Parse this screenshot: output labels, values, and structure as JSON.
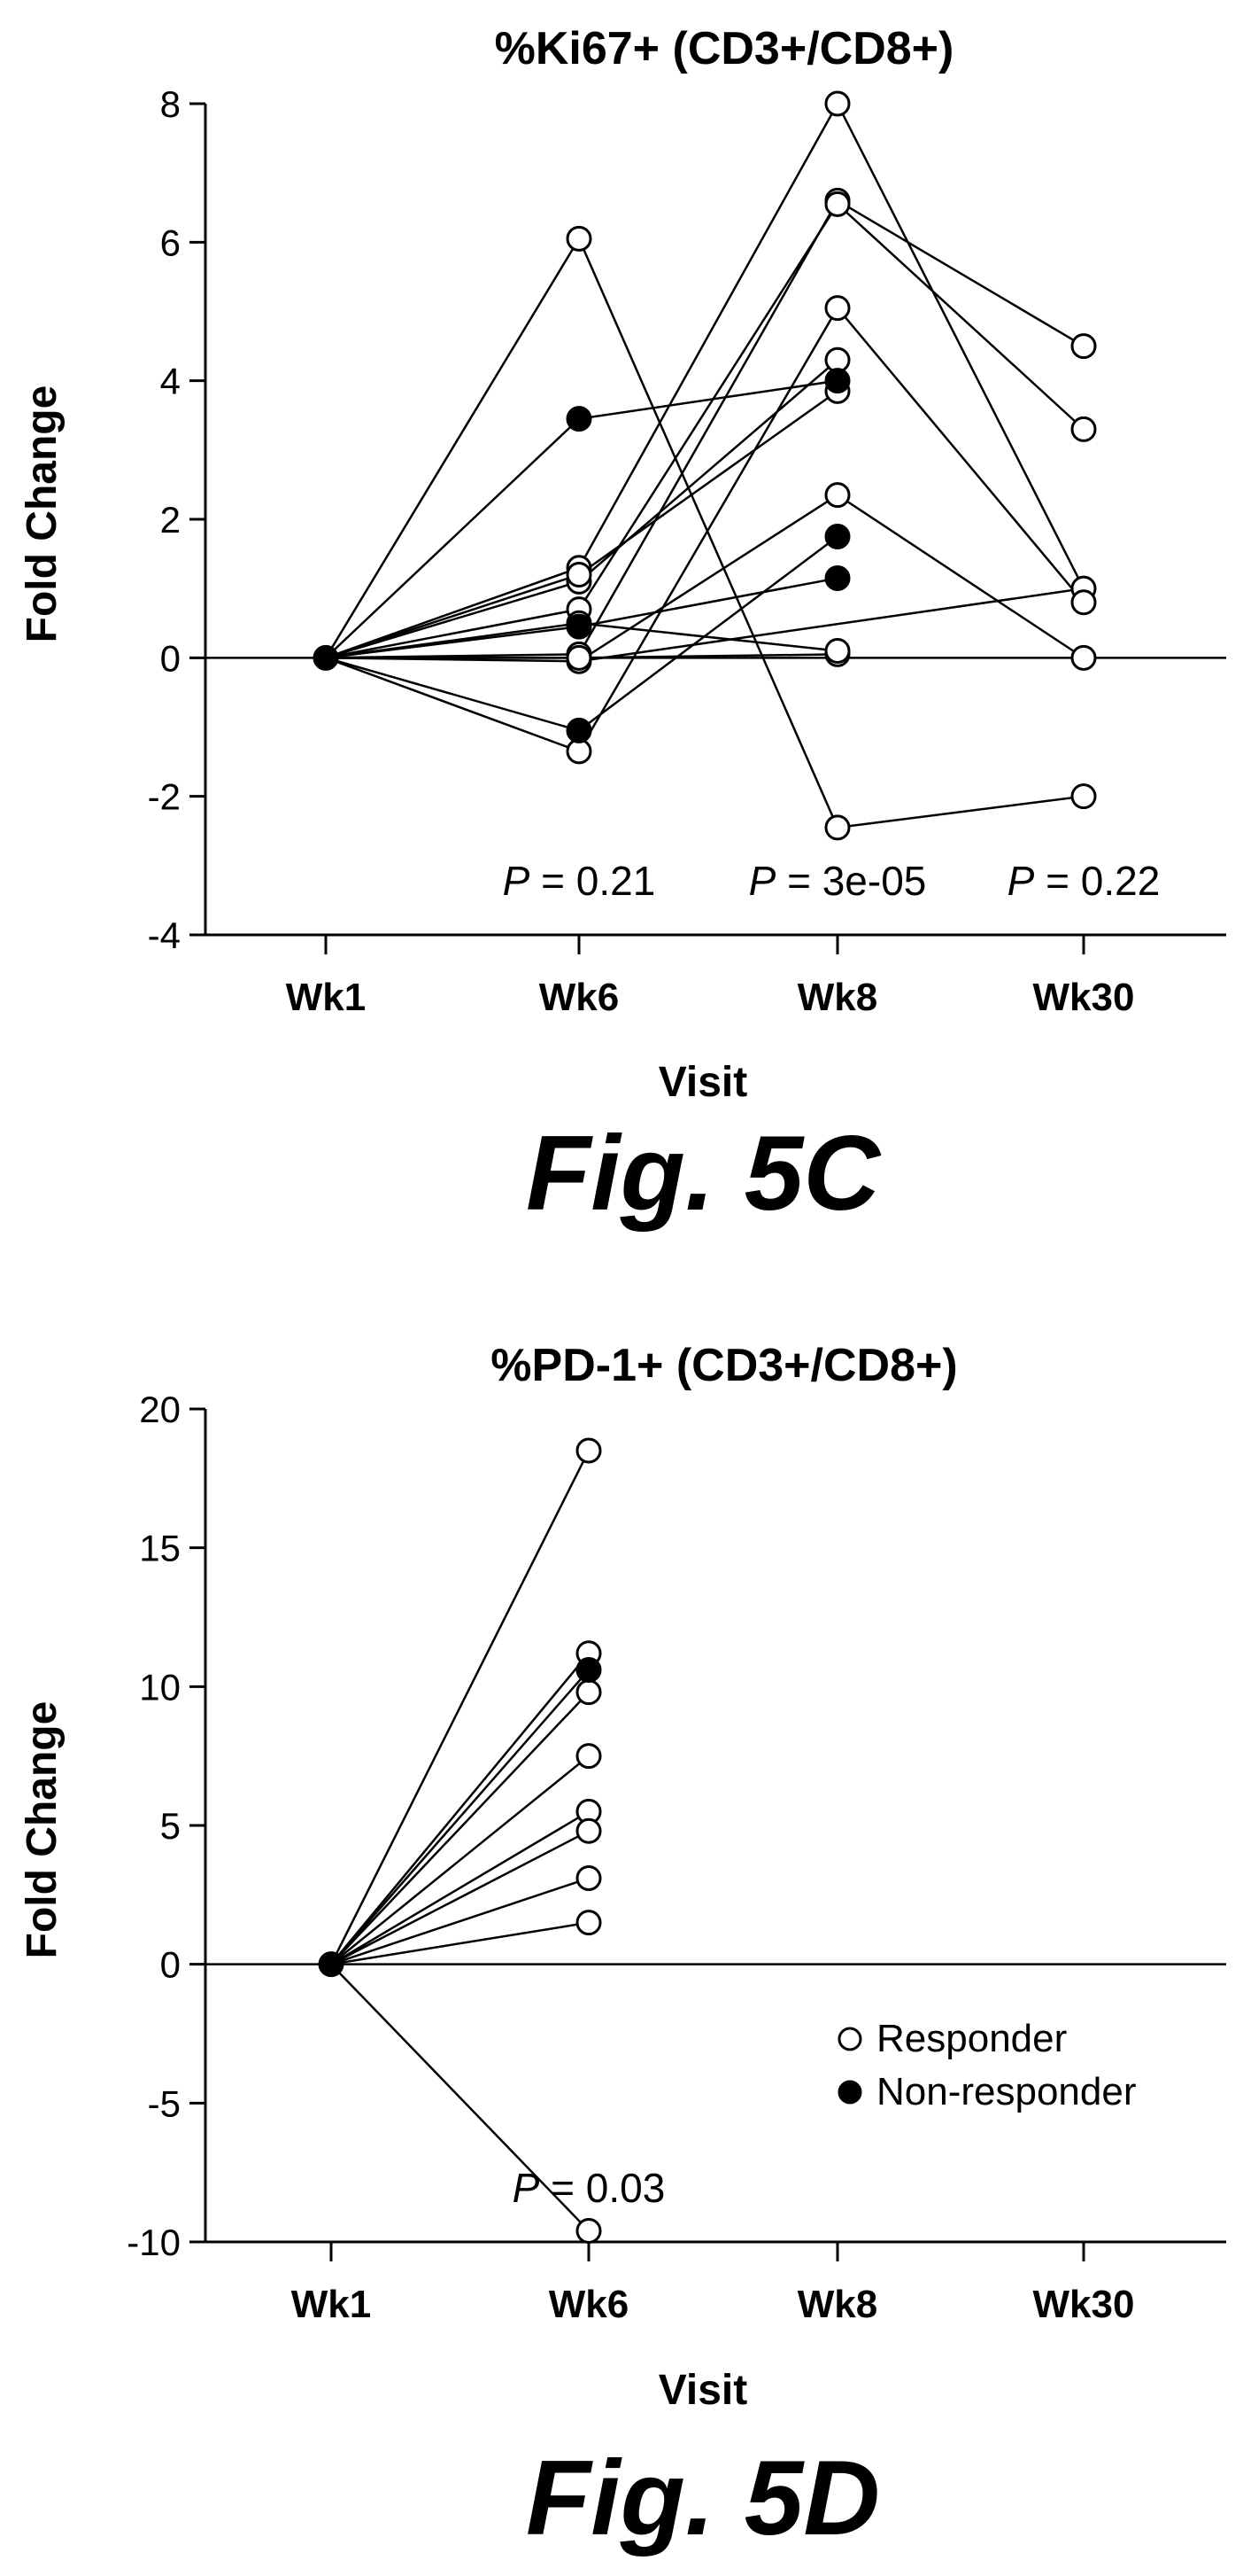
{
  "figures": [
    {
      "caption": "Fig. 5C",
      "chart_data": {
        "type": "line",
        "title": "%Ki67+ (CD3+/CD8+)",
        "xlabel": "Visit",
        "ylabel": "Fold Change",
        "categories": [
          "Wk1",
          "Wk6",
          "Wk8",
          "Wk30"
        ],
        "ylim": [
          -4,
          8
        ],
        "yticks": [
          "-4",
          "-2",
          "0",
          "2",
          "4",
          "6",
          "8"
        ],
        "grid": false,
        "reference_line": 0,
        "annotations": [
          {
            "category": "Wk6",
            "label": "P",
            "text": " = 0.21"
          },
          {
            "category": "Wk8",
            "label": "P",
            "text": " = 3e-05"
          },
          {
            "category": "Wk30",
            "label": "P",
            "text": " = 0.22"
          }
        ],
        "series": [
          {
            "group": "Responder",
            "values": [
              0,
              6.05,
              -2.45,
              -2.0
            ]
          },
          {
            "group": "Responder",
            "values": [
              0,
              1.3,
              8.0,
              1.0
            ]
          },
          {
            "group": "Responder",
            "values": [
              0,
              0.05,
              6.6,
              4.5
            ]
          },
          {
            "group": "Responder",
            "values": [
              0,
              0.7,
              6.55,
              3.3
            ]
          },
          {
            "group": "Responder",
            "values": [
              0,
              -1.35,
              5.05,
              0.8
            ]
          },
          {
            "group": "Responder",
            "values": [
              0,
              1.1,
              4.3,
              null
            ]
          },
          {
            "group": "Responder",
            "values": [
              0,
              1.2,
              3.85,
              null
            ]
          },
          {
            "group": "Responder",
            "values": [
              0,
              -0.05,
              2.35,
              0.0
            ]
          },
          {
            "group": "Responder",
            "values": [
              0,
              0.0,
              0.05,
              null
            ]
          },
          {
            "group": "Responder",
            "values": [
              0,
              0.5,
              0.1,
              null
            ]
          },
          {
            "group": "Non-responder",
            "values": [
              0,
              3.45,
              4.0,
              null
            ]
          },
          {
            "group": "Non-responder",
            "values": [
              0,
              -1.05,
              1.75,
              null
            ]
          },
          {
            "group": "Non-responder",
            "values": [
              0,
              0.45,
              1.15,
              null
            ]
          }
        ],
        "extra_links": [
          {
            "from": [
              "Wk6",
              -0.05
            ],
            "to": [
              "Wk30",
              1.0
            ]
          }
        ]
      }
    },
    {
      "caption": "Fig. 5D",
      "chart_data": {
        "type": "line",
        "title": "%PD-1+ (CD3+/CD8+)",
        "xlabel": "Visit",
        "ylabel": "Fold Change",
        "categories": [
          "Wk1",
          "Wk6",
          "Wk8",
          "Wk30"
        ],
        "ylim": [
          -10,
          20
        ],
        "yticks": [
          "-10",
          "-5",
          "0",
          "5",
          "10",
          "15",
          "20"
        ],
        "grid": false,
        "reference_line": 0,
        "legend": {
          "position": "bottom-right",
          "items": [
            {
              "group": "Responder",
              "label": "Responder",
              "marker": "open-circle"
            },
            {
              "group": "Non-responder",
              "label": "Non-responder",
              "marker": "filled-circle"
            }
          ]
        },
        "annotations": [
          {
            "category": "Wk6",
            "label": "P",
            "text": " = 0.03"
          }
        ],
        "series": [
          {
            "group": "Responder",
            "values": [
              0,
              18.5,
              null,
              null
            ]
          },
          {
            "group": "Responder",
            "values": [
              0,
              11.2,
              null,
              null
            ]
          },
          {
            "group": "Non-responder",
            "values": [
              0,
              10.6,
              null,
              null
            ]
          },
          {
            "group": "Responder",
            "values": [
              0,
              9.8,
              null,
              null
            ]
          },
          {
            "group": "Responder",
            "values": [
              0,
              7.5,
              null,
              null
            ]
          },
          {
            "group": "Responder",
            "values": [
              0,
              5.5,
              null,
              null
            ]
          },
          {
            "group": "Responder",
            "values": [
              0,
              4.8,
              null,
              null
            ]
          },
          {
            "group": "Responder",
            "values": [
              0,
              3.1,
              null,
              null
            ]
          },
          {
            "group": "Responder",
            "values": [
              0,
              1.5,
              null,
              null
            ]
          },
          {
            "group": "Responder",
            "values": [
              0,
              -9.6,
              null,
              null
            ]
          }
        ]
      }
    }
  ],
  "colors": {
    "ink": "#000000",
    "open_fill": "#ffffff"
  }
}
